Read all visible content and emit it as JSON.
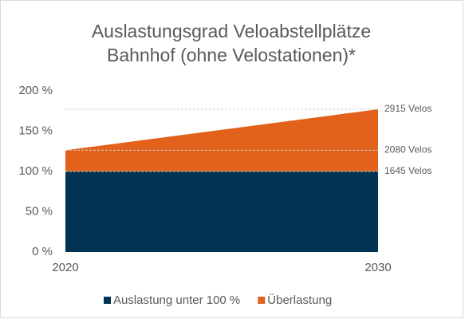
{
  "chart_data": {
    "type": "stacked_area",
    "title": "Auslastungsgrad Veloabstellplätze Bahnhof (ohne Velostationen)*",
    "x": [
      2020,
      2030
    ],
    "xlim": [
      2020,
      2030
    ],
    "xticks": [
      2020,
      2030
    ],
    "series": [
      {
        "name": "Auslastung unter 100 %",
        "color": "#003452",
        "values": [
          100,
          100
        ]
      },
      {
        "name": "Überlastung",
        "color": "#e2621b",
        "values": [
          26.4,
          77.2
        ]
      }
    ],
    "ylim": [
      0,
      200
    ],
    "yticks": [
      {
        "value": 0,
        "label": "0 %"
      },
      {
        "value": 50,
        "label": "50 %"
      },
      {
        "value": 100,
        "label": "100 %"
      },
      {
        "value": 150,
        "label": "150 %"
      },
      {
        "value": 200,
        "label": "200 %"
      }
    ],
    "annotations": [
      {
        "value": 177.2,
        "label": "2915 Velos"
      },
      {
        "value": 126.4,
        "label": "2080 Velos"
      },
      {
        "value": 100,
        "label": "1645 Velos"
      }
    ],
    "legend": "bottom"
  }
}
